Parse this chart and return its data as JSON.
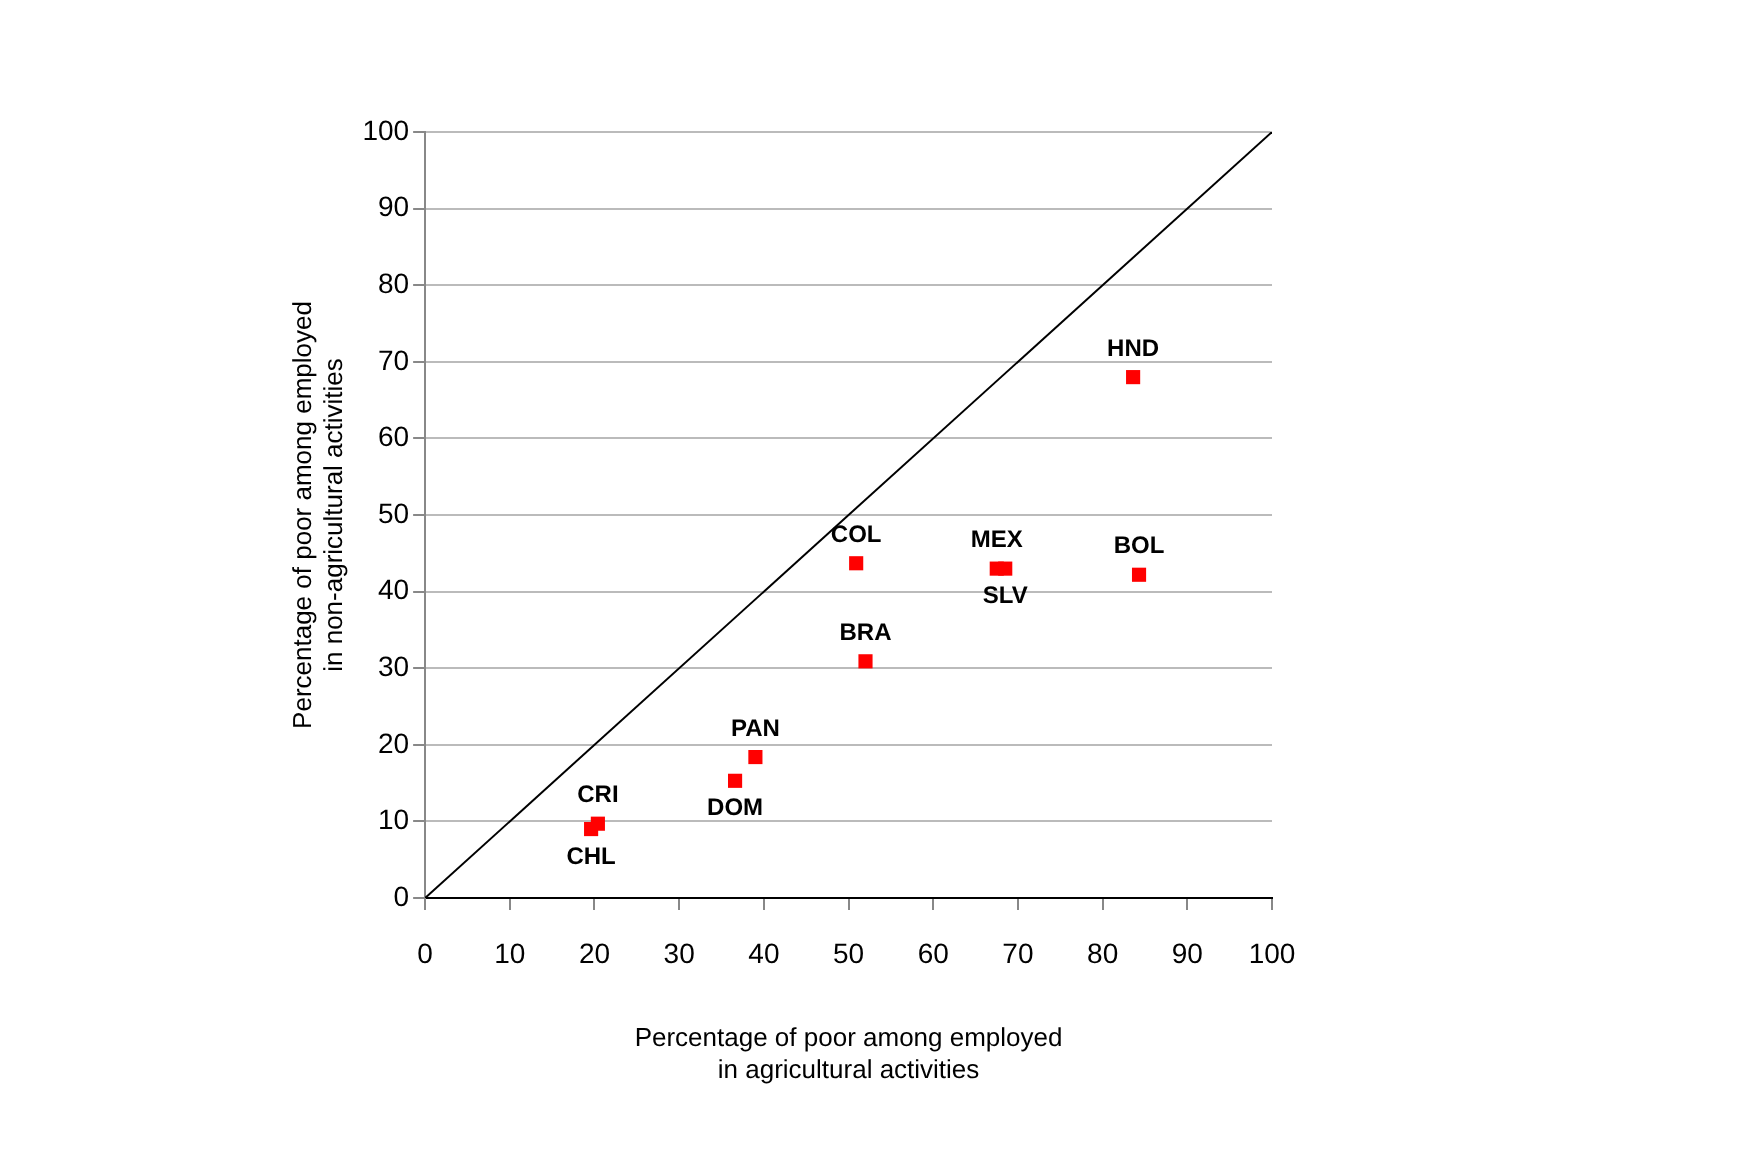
{
  "chart_data": {
    "type": "scatter",
    "xlabel": "Percentage of poor among employed in agricultural activities",
    "ylabel": "Percentage of poor among employed in non-agricultural activities",
    "series": [
      {
        "type": "scatter",
        "color": "#ff0000",
        "marker": "square",
        "x": [
          83.6,
          84.3,
          67.5,
          68.5,
          50.9,
          52.0,
          39.0,
          36.6,
          20.4,
          19.6
        ],
        "values": [
          68.0,
          42.2,
          43.0,
          43.0,
          43.7,
          30.9,
          18.4,
          15.3,
          9.7,
          9.0
        ]
      },
      {
        "type": "line",
        "color": "#000000",
        "marker": "none",
        "x": [
          0,
          100
        ],
        "values": [
          0,
          100
        ]
      }
    ],
    "annotations": [
      {
        "text": "HND",
        "x": 83.6,
        "y": 68.0
      },
      {
        "text": "BOL",
        "x": 84.3,
        "y": 42.2
      },
      {
        "text": "MEX",
        "x": 67.5,
        "y": 43.0
      },
      {
        "text": "SLV",
        "x": 68.5,
        "y": 43.0
      },
      {
        "text": "COL",
        "x": 50.9,
        "y": 43.7
      },
      {
        "text": "BRA",
        "x": 52.0,
        "y": 30.9
      },
      {
        "text": "PAN",
        "x": 39.0,
        "y": 18.4
      },
      {
        "text": "DOM",
        "x": 36.6,
        "y": 15.3
      },
      {
        "text": "CRI",
        "x": 20.4,
        "y": 9.7
      },
      {
        "text": "CHL",
        "x": 19.6,
        "y": 9.0
      }
    ],
    "xlim": [
      0,
      100
    ],
    "xticks": [
      0,
      10,
      20,
      30,
      40,
      50,
      60,
      70,
      80,
      90,
      100
    ],
    "ylim": [
      0,
      100
    ],
    "yticks": [
      0,
      10,
      20,
      30,
      40,
      50,
      60,
      70,
      80,
      90,
      100
    ],
    "grid": "y",
    "legend": false
  }
}
